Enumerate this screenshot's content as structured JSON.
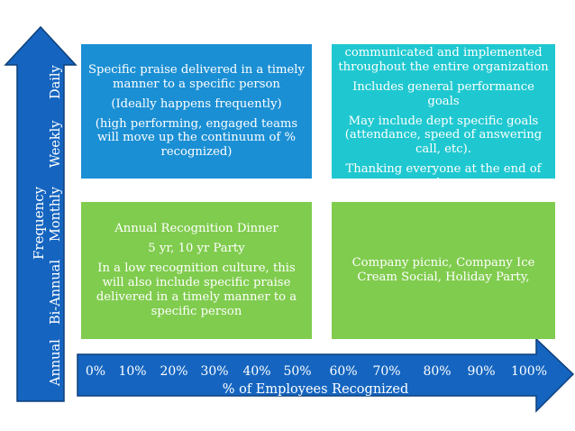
{
  "colors": {
    "arrow": "#1565c0",
    "arrow_outline": "#0d3f7a",
    "top_left_box": "#1b8fd4",
    "top_right_box": "#1fc8d0",
    "bottom_boxes": "#80cc4e"
  },
  "y_axis": {
    "title": "Frequency",
    "labels": [
      "Annual",
      "Bi-Annual",
      "Monthly",
      "Weekly",
      "Daily"
    ]
  },
  "x_axis": {
    "title": "% of Employees Recognized",
    "ticks": [
      "0%",
      "10%",
      "20%",
      "30%",
      "40%",
      "50%",
      "60%",
      "70%",
      "80%",
      "90%",
      "100%"
    ]
  },
  "boxes": {
    "top_left": {
      "lines": [
        "Specific praise delivered in a timely manner to a specific person",
        "(Ideally happens frequently)",
        "(high performing, engaged teams will move up the continuum of % recognized)"
      ]
    },
    "top_right": {
      "lines": [
        "Systematic reward system communicated and implemented throughout the entire organization",
        "Includes general performance goals",
        "May include dept specific goals (attendance, speed of answering call, etc).",
        "Thanking everyone at the end of day"
      ]
    },
    "bottom_left": {
      "lines": [
        "Annual Recognition Dinner",
        "5 yr, 10 yr Party",
        "In a low recognition culture, this will also include specific praise delivered in a timely manner to a specific person"
      ]
    },
    "bottom_right": {
      "lines": [
        "Company picnic, Company Ice Cream Social, Holiday Party,"
      ]
    }
  }
}
